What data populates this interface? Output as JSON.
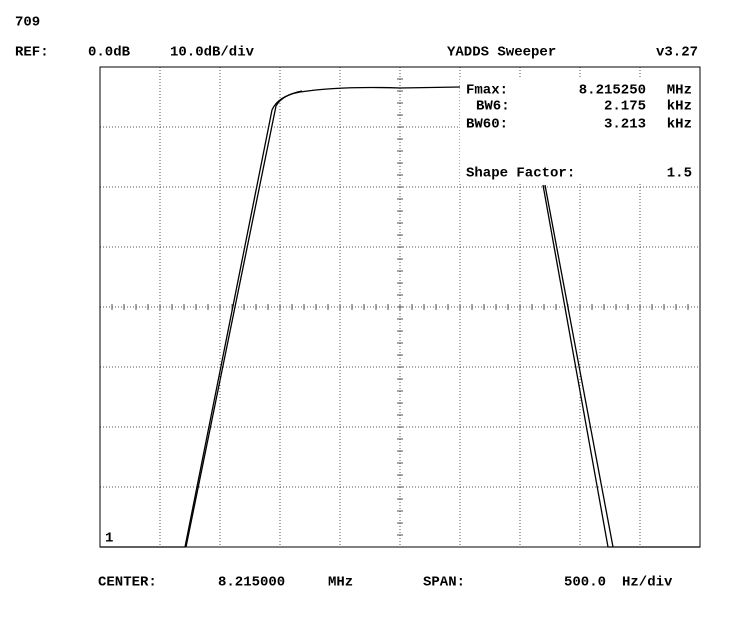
{
  "header": {
    "id": "709",
    "ref_label": "REF:",
    "ref_level": "0.0dB",
    "scale": "10.0dB/div",
    "title": "YADDS Sweeper",
    "version": "v3.27"
  },
  "readout": {
    "fmax": {
      "label": "Fmax:",
      "value": "8.215250",
      "unit": "MHz"
    },
    "bw6": {
      "label": "BW6:",
      "value": "2.175",
      "unit": "kHz"
    },
    "bw60": {
      "label": "BW60:",
      "value": "3.213",
      "unit": "kHz"
    },
    "shape_factor": {
      "label": "Shape Factor:",
      "value": "1.5"
    }
  },
  "marker": "1",
  "footer": {
    "center_label": "CENTER:",
    "center_value": "8.215000",
    "center_unit": "MHz",
    "span_label": "SPAN:",
    "span_value": "500.0",
    "span_unit": "Hz/div"
  }
}
